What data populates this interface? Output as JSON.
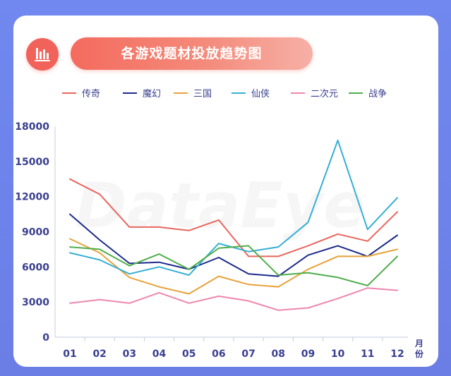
{
  "title": "各游戏题材投放趋势图",
  "chart_data": {
    "type": "line",
    "title": "各游戏题材投放趋势图",
    "xlabel": "月份",
    "ylabel": "",
    "categories": [
      "01",
      "02",
      "03",
      "04",
      "05",
      "06",
      "07",
      "08",
      "09",
      "10",
      "11",
      "12"
    ],
    "ylim": [
      0,
      18000
    ],
    "yticks": [
      0,
      3000,
      6000,
      9000,
      12000,
      15000,
      18000
    ],
    "legend_position": "top",
    "grid": false,
    "series": [
      {
        "name": "传奇",
        "color": "#e8665e",
        "values": [
          13500,
          12200,
          9400,
          9400,
          9100,
          10000,
          6900,
          6900,
          7800,
          8800,
          8200,
          10700
        ]
      },
      {
        "name": "魔幻",
        "color": "#1c2a8c",
        "values": [
          10500,
          8300,
          6300,
          6400,
          5800,
          6800,
          5400,
          5200,
          7000,
          7800,
          6900,
          8700
        ]
      },
      {
        "name": "三国",
        "color": "#e9a23b",
        "values": [
          8400,
          7200,
          5100,
          4300,
          3700,
          5200,
          4500,
          4300,
          5800,
          6900,
          6900,
          7500
        ]
      },
      {
        "name": "仙侠",
        "color": "#36afd4",
        "values": [
          7200,
          6600,
          5400,
          6000,
          5300,
          8000,
          7300,
          7700,
          9800,
          16800,
          9200,
          11900
        ]
      },
      {
        "name": "二次元",
        "color": "#ef86ad",
        "values": [
          2900,
          3200,
          2900,
          3800,
          2900,
          3500,
          3100,
          2300,
          2500,
          3300,
          4200,
          4000
        ]
      },
      {
        "name": "战争",
        "color": "#4fae4b",
        "values": [
          7700,
          7500,
          6100,
          7100,
          5800,
          7600,
          7800,
          5300,
          5500,
          5100,
          4400,
          6900
        ]
      }
    ]
  }
}
